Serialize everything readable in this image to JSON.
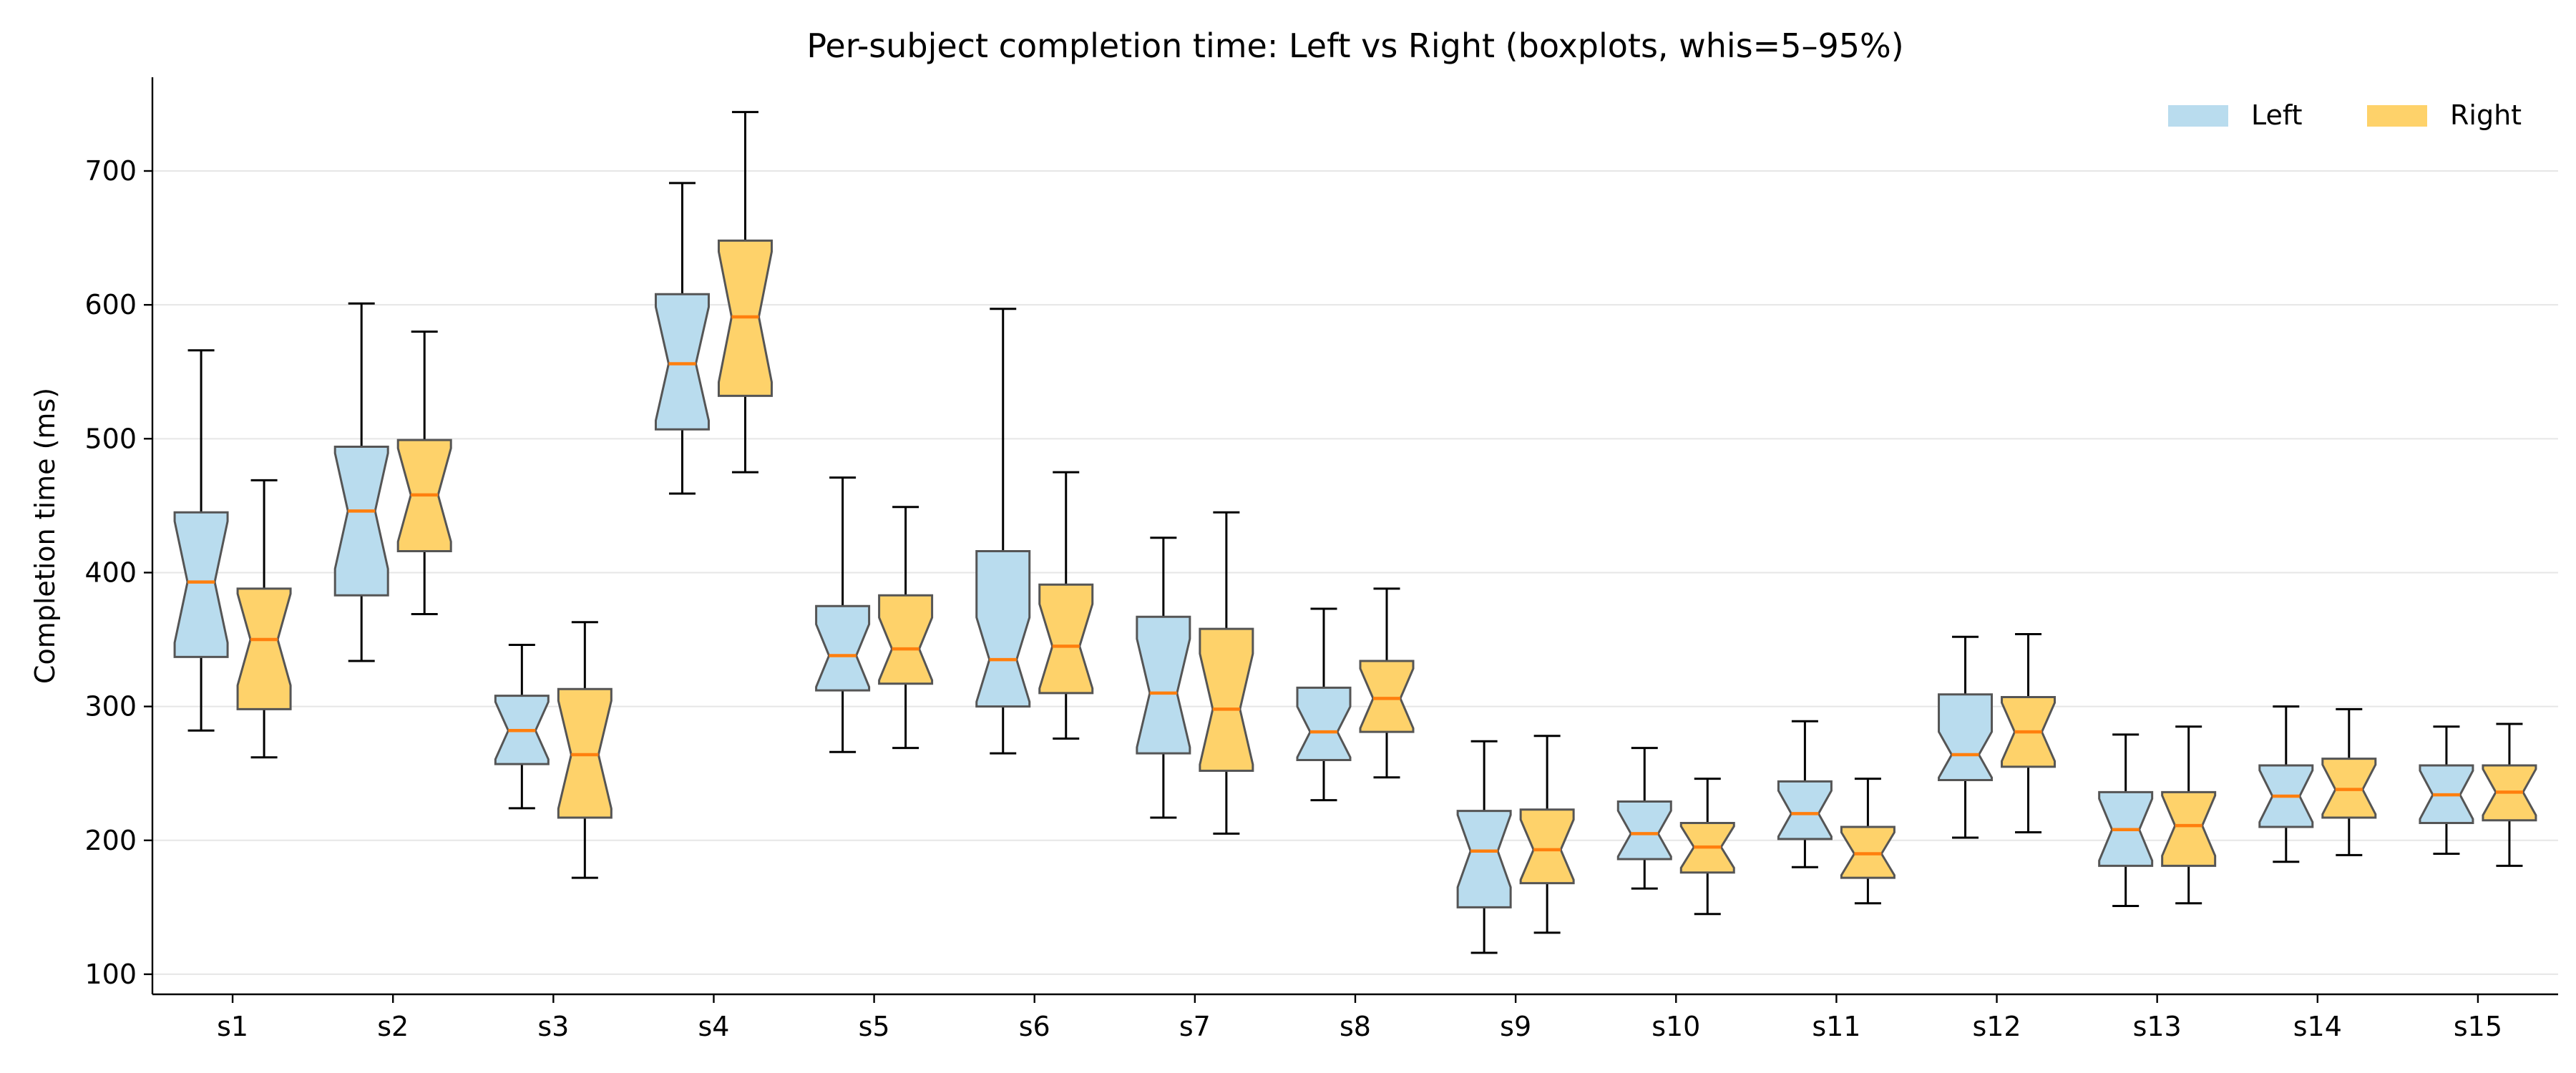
{
  "chart_data": {
    "type": "boxplot",
    "title": "Per-subject completion time: Left vs Right (boxplots, whis=5–95%)",
    "xlabel": "",
    "ylabel": "Completion time (ms)",
    "ylim": [
      85,
      770
    ],
    "yticks": [
      100,
      200,
      300,
      400,
      500,
      600,
      700
    ],
    "grid": "horizontal",
    "notched": true,
    "legend_position": "top-right",
    "categories": [
      "s1",
      "s2",
      "s3",
      "s4",
      "s5",
      "s6",
      "s7",
      "s8",
      "s9",
      "s10",
      "s11",
      "s12",
      "s13",
      "s14",
      "s15"
    ],
    "series": [
      {
        "name": "Left",
        "color": "#b9dcee",
        "stats": [
          {
            "whislo": 282,
            "q1": 337,
            "med": 393,
            "q3": 445,
            "whishi": 566
          },
          {
            "whislo": 334,
            "q1": 383,
            "med": 446,
            "q3": 494,
            "whishi": 601
          },
          {
            "whislo": 224,
            "q1": 257,
            "med": 282,
            "q3": 308,
            "whishi": 346
          },
          {
            "whislo": 459,
            "q1": 507,
            "med": 556,
            "q3": 608,
            "whishi": 691
          },
          {
            "whislo": 266,
            "q1": 312,
            "med": 338,
            "q3": 375,
            "whishi": 471
          },
          {
            "whislo": 265,
            "q1": 300,
            "med": 335,
            "q3": 416,
            "whishi": 597
          },
          {
            "whislo": 217,
            "q1": 265,
            "med": 310,
            "q3": 367,
            "whishi": 426
          },
          {
            "whislo": 230,
            "q1": 260,
            "med": 281,
            "q3": 314,
            "whishi": 373
          },
          {
            "whislo": 116,
            "q1": 150,
            "med": 192,
            "q3": 222,
            "whishi": 274
          },
          {
            "whislo": 164,
            "q1": 186,
            "med": 205,
            "q3": 229,
            "whishi": 269
          },
          {
            "whislo": 180,
            "q1": 201,
            "med": 220,
            "q3": 244,
            "whishi": 289
          },
          {
            "whislo": 202,
            "q1": 245,
            "med": 264,
            "q3": 309,
            "whishi": 352
          },
          {
            "whislo": 151,
            "q1": 181,
            "med": 208,
            "q3": 236,
            "whishi": 279
          },
          {
            "whislo": 184,
            "q1": 210,
            "med": 233,
            "q3": 256,
            "whishi": 300
          },
          {
            "whislo": 190,
            "q1": 213,
            "med": 234,
            "q3": 256,
            "whishi": 285
          }
        ]
      },
      {
        "name": "Right",
        "color": "#fed26a",
        "stats": [
          {
            "whislo": 262,
            "q1": 298,
            "med": 350,
            "q3": 388,
            "whishi": 469
          },
          {
            "whislo": 369,
            "q1": 416,
            "med": 458,
            "q3": 499,
            "whishi": 580
          },
          {
            "whislo": 172,
            "q1": 217,
            "med": 264,
            "q3": 313,
            "whishi": 363
          },
          {
            "whislo": 475,
            "q1": 532,
            "med": 591,
            "q3": 648,
            "whishi": 744
          },
          {
            "whislo": 269,
            "q1": 317,
            "med": 343,
            "q3": 383,
            "whishi": 449
          },
          {
            "whislo": 276,
            "q1": 310,
            "med": 345,
            "q3": 391,
            "whishi": 475
          },
          {
            "whislo": 205,
            "q1": 252,
            "med": 298,
            "q3": 358,
            "whishi": 445
          },
          {
            "whislo": 247,
            "q1": 281,
            "med": 306,
            "q3": 334,
            "whishi": 388
          },
          {
            "whislo": 131,
            "q1": 168,
            "med": 193,
            "q3": 223,
            "whishi": 278
          },
          {
            "whislo": 145,
            "q1": 176,
            "med": 195,
            "q3": 213,
            "whishi": 246
          },
          {
            "whislo": 153,
            "q1": 172,
            "med": 190,
            "q3": 210,
            "whishi": 246
          },
          {
            "whislo": 206,
            "q1": 255,
            "med": 281,
            "q3": 307,
            "whishi": 354
          },
          {
            "whislo": 153,
            "q1": 181,
            "med": 211,
            "q3": 236,
            "whishi": 285
          },
          {
            "whislo": 189,
            "q1": 217,
            "med": 238,
            "q3": 261,
            "whishi": 298
          },
          {
            "whislo": 181,
            "q1": 215,
            "med": 236,
            "q3": 256,
            "whishi": 287
          }
        ]
      }
    ],
    "median_color": "#ff7f0e"
  }
}
